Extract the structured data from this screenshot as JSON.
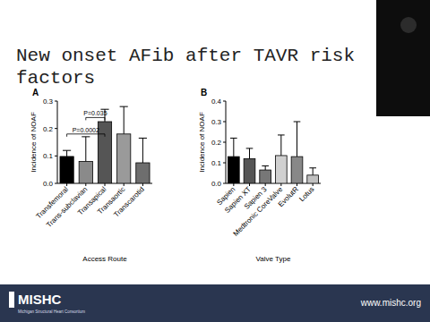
{
  "slide_title": "New onset AFib after TAVR risk factors",
  "chart_data": [
    {
      "type": "bar",
      "panel": "A",
      "categories": [
        "Transfemoral",
        "Trans-subclavian",
        "Transapical",
        "Transaortic",
        "Transcarotid"
      ],
      "values": [
        0.098,
        0.08,
        0.225,
        0.18,
        0.075
      ],
      "errors": [
        0.022,
        0.09,
        0.045,
        0.1,
        0.09
      ],
      "colors": [
        "#000000",
        "#8a8a8a",
        "#555555",
        "#9a9a9a",
        "#6e6e6e"
      ],
      "ylim": [
        0,
        0.3
      ],
      "yticks": [
        {
          "value": 0,
          "label": "0.0"
        },
        {
          "value": 0.1,
          "label": "0.1"
        },
        {
          "value": 0.2,
          "label": "0.2"
        },
        {
          "value": 0.3,
          "label": "0.3"
        }
      ],
      "x_label": "Access Route",
      "y_label": "Incidence of NOAF",
      "annotations": [
        {
          "text": "P=0.0002",
          "from": "Transfemoral",
          "to": "Transapical",
          "y": 0.18
        },
        {
          "text": "P=0.035",
          "from": "Trans-subclavian",
          "to": "Transapical",
          "y": 0.24
        }
      ]
    },
    {
      "type": "bar",
      "panel": "B",
      "categories": [
        "Sapien",
        "Sapien XT",
        "Sapien 3",
        "Medtronic CoreValve",
        "EvolutR",
        "Lotus"
      ],
      "values": [
        0.13,
        0.12,
        0.065,
        0.135,
        0.13,
        0.04
      ],
      "errors": [
        0.09,
        0.05,
        0.02,
        0.1,
        0.17,
        0.035
      ],
      "colors": [
        "#000000",
        "#555555",
        "#777777",
        "#d0d0d0",
        "#888888",
        "#c0c0c0"
      ],
      "ylim": [
        0,
        0.4
      ],
      "yticks": [
        {
          "value": 0,
          "label": "0.0"
        },
        {
          "value": 0.1,
          "label": "0.1"
        },
        {
          "value": 0.2,
          "label": "0.2"
        },
        {
          "value": 0.3,
          "label": "0.3"
        },
        {
          "value": 0.4,
          "label": "0.4"
        }
      ],
      "x_label": "Valve Type",
      "y_label": "Incidence of NOAF"
    }
  ],
  "footer": {
    "logo": "MISHC",
    "tagline": "Michigan Structural Heart Consortium",
    "url": "www.mishc.org"
  }
}
